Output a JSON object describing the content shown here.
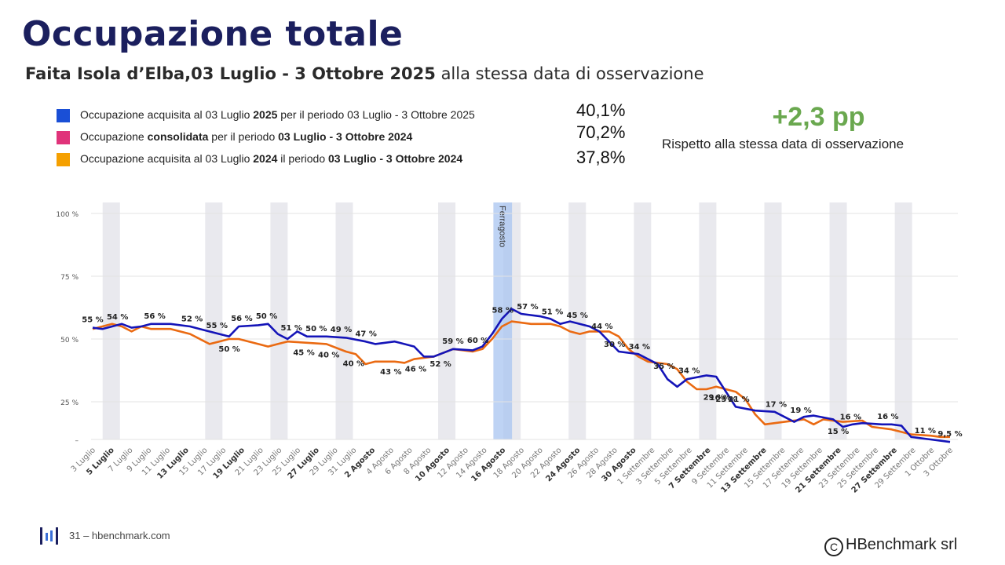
{
  "header": {
    "title": "Occupazione totale",
    "subtitle_bold": "Faita Isola d’Elba,03 Luglio - 3 Ottobre 2025",
    "subtitle_rest": " alla stessa data di osservazione"
  },
  "legend": [
    {
      "color": "#1a4fd6",
      "parts": [
        [
          "Occupazione acquisita al 03 Luglio ",
          false
        ],
        [
          "2025",
          true
        ],
        [
          " per il periodo 03 Luglio - 3 Ottobre 2025",
          false
        ]
      ],
      "value": "40,1%"
    },
    {
      "color": "#e0337a",
      "parts": [
        [
          "Occupazione ",
          false
        ],
        [
          "consolidata",
          true
        ],
        [
          "  per il periodo ",
          false
        ],
        [
          "03 Luglio - 3 Ottobre 2024",
          true
        ]
      ],
      "value": "70,2%"
    },
    {
      "color": "#f5a000",
      "parts": [
        [
          "Occupazione acquisita al 03 Luglio ",
          false
        ],
        [
          "2024",
          true
        ],
        [
          " il periodo ",
          false
        ],
        [
          "03 Luglio - 3 Ottobre 2024",
          true
        ]
      ],
      "value": "37,8%"
    }
  ],
  "delta": {
    "value": "+2,3 pp",
    "note": "Rispetto alla stessa data di osservazione"
  },
  "footer": {
    "text": "31 – hbenchmark.com",
    "copyright": "HBenchmark srl",
    "copyright_symbol": "C"
  },
  "colors": {
    "series_2025": "#1414b8",
    "series_2024": "#ea6a12",
    "highlight": "#a8c4f0",
    "weekend": "#e9e9ee",
    "title": "#1b1f5e",
    "delta": "#6aa84f"
  },
  "chart_data": {
    "type": "line",
    "y_ticks": [
      "100 %",
      "75 %",
      "50 %",
      "25 %",
      "–"
    ],
    "ylim": [
      10,
      100
    ],
    "x_tick_labels": [
      {
        "label": "3 Luglio",
        "bold": false
      },
      {
        "label": "5 Luglio",
        "bold": true
      },
      {
        "label": "7 Luglio",
        "bold": false
      },
      {
        "label": "9 Luglio",
        "bold": false
      },
      {
        "label": "11 Luglio",
        "bold": false
      },
      {
        "label": "13 Luglio",
        "bold": true
      },
      {
        "label": "15 Luglio",
        "bold": false
      },
      {
        "label": "17 Luglio",
        "bold": false
      },
      {
        "label": "19 Luglio",
        "bold": true
      },
      {
        "label": "21 Luglio",
        "bold": false
      },
      {
        "label": "23 Luglio",
        "bold": false
      },
      {
        "label": "25 Luglio",
        "bold": false
      },
      {
        "label": "27 Luglio",
        "bold": true
      },
      {
        "label": "29 Luglio",
        "bold": false
      },
      {
        "label": "31 Luglio",
        "bold": false
      },
      {
        "label": "2 Agosto",
        "bold": true
      },
      {
        "label": "4 Agosto",
        "bold": false
      },
      {
        "label": "6 Agosto",
        "bold": false
      },
      {
        "label": "8 Agosto",
        "bold": false
      },
      {
        "label": "10 Agosto",
        "bold": true
      },
      {
        "label": "12 Agosto",
        "bold": false
      },
      {
        "label": "14 Agosto",
        "bold": false
      },
      {
        "label": "16 Agosto",
        "bold": true
      },
      {
        "label": "18 Agosto",
        "bold": false
      },
      {
        "label": "20 Agosto",
        "bold": false
      },
      {
        "label": "22 Agosto",
        "bold": false
      },
      {
        "label": "24 Agosto",
        "bold": true
      },
      {
        "label": "26 Agosto",
        "bold": false
      },
      {
        "label": "28 Agosto",
        "bold": false
      },
      {
        "label": "30 Agosto",
        "bold": true
      },
      {
        "label": "1 Settembre",
        "bold": false
      },
      {
        "label": "3 Settembre",
        "bold": false
      },
      {
        "label": "5 Settembre",
        "bold": false
      },
      {
        "label": "7 Settembre",
        "bold": true
      },
      {
        "label": "9 Settembre",
        "bold": false
      },
      {
        "label": "11 Settembre",
        "bold": false
      },
      {
        "label": "13 Settembre",
        "bold": true
      },
      {
        "label": "15 Settembre",
        "bold": false
      },
      {
        "label": "17 Settembre",
        "bold": false
      },
      {
        "label": "19 Settembre",
        "bold": false
      },
      {
        "label": "21 Settembre",
        "bold": true
      },
      {
        "label": "23 Settembre",
        "bold": false
      },
      {
        "label": "25 Settembre",
        "bold": false
      },
      {
        "label": "27 Settembre",
        "bold": true
      },
      {
        "label": "29 Settembre",
        "bold": false
      },
      {
        "label": "1 Ottobre",
        "bold": false
      },
      {
        "label": "3 Ottobre",
        "bold": false
      }
    ],
    "weekend_bands_day_index": [
      2,
      10,
      16,
      24,
      30,
      38,
      44,
      52,
      58,
      66,
      72,
      80,
      86,
      94,
      100,
      108,
      114,
      122,
      128,
      136,
      142,
      150,
      156,
      164,
      170,
      178,
      184
    ],
    "highlight": {
      "label": "Ferragosto",
      "start_day_index": 43,
      "end_day_index": 45
    },
    "series": [
      {
        "key": "2025",
        "points": [
          [
            0,
            54.5
          ],
          [
            1,
            54
          ],
          [
            2,
            55
          ],
          [
            3,
            56
          ],
          [
            4,
            54.5
          ],
          [
            5,
            55
          ],
          [
            6,
            56
          ],
          [
            8,
            56
          ],
          [
            10,
            55
          ],
          [
            11,
            54
          ],
          [
            13,
            52
          ],
          [
            14,
            51
          ],
          [
            15,
            55
          ],
          [
            17,
            55.5
          ],
          [
            18,
            56
          ],
          [
            19,
            52
          ],
          [
            20,
            50
          ],
          [
            21,
            53
          ],
          [
            22,
            51
          ],
          [
            24,
            51
          ],
          [
            26,
            50.5
          ],
          [
            28,
            49
          ],
          [
            29,
            48
          ],
          [
            31,
            49
          ],
          [
            33,
            47
          ],
          [
            34,
            43
          ],
          [
            35,
            43
          ],
          [
            37,
            46
          ],
          [
            39,
            45.5
          ],
          [
            40,
            47
          ],
          [
            41,
            52
          ],
          [
            42,
            58
          ],
          [
            43,
            62
          ],
          [
            44,
            60
          ],
          [
            46,
            59
          ],
          [
            47,
            58
          ],
          [
            48,
            56
          ],
          [
            49,
            57
          ],
          [
            51,
            55
          ],
          [
            52,
            53
          ],
          [
            54,
            45
          ],
          [
            56,
            44
          ],
          [
            58,
            40
          ],
          [
            59,
            34
          ],
          [
            60,
            31
          ],
          [
            61,
            34
          ],
          [
            63,
            35.5
          ],
          [
            64,
            35
          ],
          [
            65,
            29
          ],
          [
            66,
            23
          ],
          [
            68,
            21.5
          ],
          [
            70,
            21
          ],
          [
            71,
            19
          ],
          [
            72,
            17
          ],
          [
            73,
            19
          ],
          [
            74,
            19.5
          ],
          [
            76,
            18
          ],
          [
            77,
            15
          ],
          [
            78,
            16
          ],
          [
            79,
            16.5
          ],
          [
            81,
            16
          ],
          [
            82,
            16
          ],
          [
            83,
            15.5
          ],
          [
            84,
            11
          ],
          [
            85,
            10.5
          ],
          [
            86,
            10
          ],
          [
            87,
            9.5
          ],
          [
            88,
            9
          ]
        ],
        "labels": [
          [
            0,
            "55 %"
          ],
          [
            2,
            "54 %"
          ],
          [
            5,
            "56 %"
          ],
          [
            8,
            "52 %"
          ],
          [
            10,
            "55 %"
          ],
          [
            12,
            "56 %"
          ],
          [
            14,
            "50 %"
          ],
          [
            16,
            "51 %"
          ],
          [
            18,
            "50 %"
          ],
          [
            20,
            "49 %"
          ],
          [
            22,
            "47 %"
          ],
          [
            29,
            "59 %"
          ],
          [
            31,
            "60 %"
          ],
          [
            33,
            "58 %"
          ],
          [
            35,
            "57 %"
          ],
          [
            37,
            "51 %"
          ],
          [
            39,
            "45 %"
          ],
          [
            41,
            "44 %"
          ],
          [
            44,
            "34 %"
          ],
          [
            46,
            "35 %"
          ],
          [
            48,
            "34 %"
          ],
          [
            52,
            "21 %"
          ],
          [
            55,
            "17 %"
          ],
          [
            57,
            "19 %"
          ],
          [
            61,
            "16 %"
          ],
          [
            64,
            "16 %"
          ],
          [
            67,
            "11 %"
          ],
          [
            69,
            "9,5 %"
          ]
        ]
      },
      {
        "key": "2024",
        "points": [
          [
            0,
            54
          ],
          [
            1,
            55
          ],
          [
            2,
            56
          ],
          [
            3,
            55
          ],
          [
            4,
            53
          ],
          [
            5,
            55
          ],
          [
            6,
            54
          ],
          [
            8,
            54
          ],
          [
            10,
            52
          ],
          [
            11,
            50
          ],
          [
            12,
            48
          ],
          [
            13,
            49
          ],
          [
            14,
            50
          ],
          [
            15,
            50
          ],
          [
            17,
            48
          ],
          [
            18,
            47
          ],
          [
            19,
            48
          ],
          [
            20,
            49
          ],
          [
            22,
            48.5
          ],
          [
            24,
            48
          ],
          [
            26,
            45
          ],
          [
            27,
            44
          ],
          [
            28,
            40
          ],
          [
            29,
            41
          ],
          [
            31,
            41
          ],
          [
            32,
            40.5
          ],
          [
            33,
            42
          ],
          [
            35,
            43
          ],
          [
            37,
            46
          ],
          [
            39,
            45
          ],
          [
            40,
            46
          ],
          [
            41,
            50
          ],
          [
            42,
            55
          ],
          [
            43,
            57
          ],
          [
            45,
            56
          ],
          [
            47,
            56
          ],
          [
            48,
            55
          ],
          [
            49,
            53
          ],
          [
            50,
            52
          ],
          [
            51,
            53
          ],
          [
            53,
            53
          ],
          [
            54,
            51
          ],
          [
            55,
            46
          ],
          [
            56,
            43
          ],
          [
            57,
            41
          ],
          [
            59,
            40
          ],
          [
            60,
            38
          ],
          [
            61,
            33
          ],
          [
            62,
            30
          ],
          [
            63,
            30
          ],
          [
            64,
            31
          ],
          [
            66,
            29
          ],
          [
            67,
            26
          ],
          [
            68,
            20
          ],
          [
            69,
            16
          ],
          [
            71,
            17
          ],
          [
            73,
            18
          ],
          [
            74,
            16
          ],
          [
            75,
            18
          ],
          [
            77,
            17
          ],
          [
            79,
            17.5
          ],
          [
            80,
            15
          ],
          [
            82,
            14
          ],
          [
            83,
            13
          ],
          [
            84,
            12
          ],
          [
            86,
            11.5
          ],
          [
            87,
            11
          ],
          [
            88,
            11
          ]
        ],
        "labels": [
          [
            11,
            "50 %"
          ],
          [
            17,
            "45 %"
          ],
          [
            19,
            "40 %"
          ],
          [
            21,
            "40 %"
          ],
          [
            24,
            "43 %"
          ],
          [
            26,
            "46 %"
          ],
          [
            28,
            "52 %"
          ],
          [
            42,
            "30 %"
          ],
          [
            50,
            "29 %"
          ],
          [
            51,
            "23 %"
          ],
          [
            50.5,
            "16 %"
          ],
          [
            60,
            "15 %"
          ]
        ]
      }
    ]
  }
}
